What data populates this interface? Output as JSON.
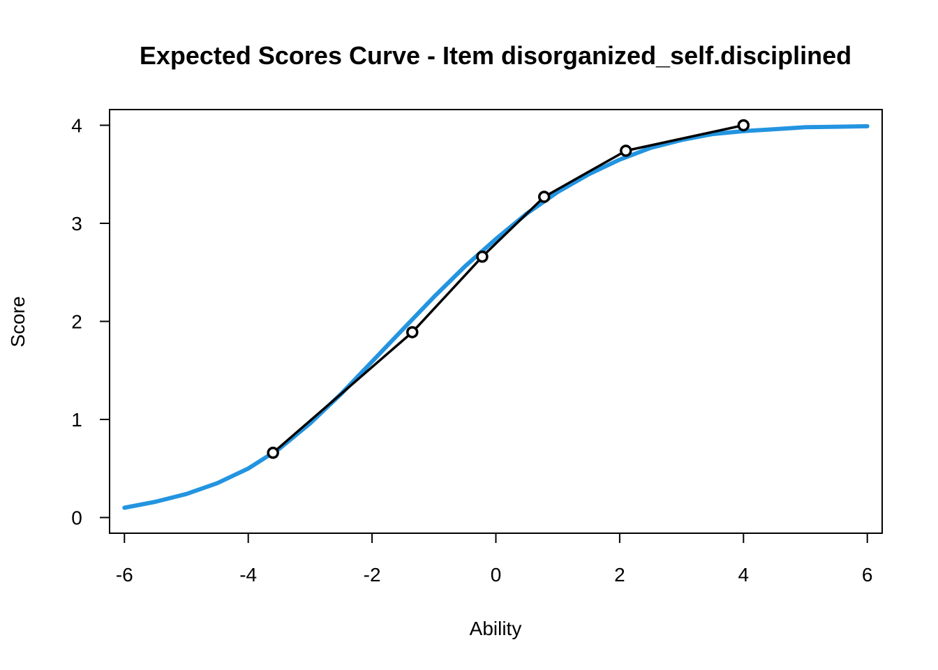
{
  "chart_data": {
    "type": "line",
    "title": "Expected Scores Curve - Item  disorganized_self.disciplined",
    "xlabel": "Ability",
    "ylabel": "Score",
    "xlim": [
      -6.24,
      6.24
    ],
    "ylim": [
      -0.16,
      4.16
    ],
    "x_ticks": [
      -6,
      -4,
      -2,
      0,
      2,
      4,
      6
    ],
    "y_ticks": [
      0,
      1,
      2,
      3,
      4
    ],
    "grid": false,
    "legend": "none",
    "colors": {
      "curve": "#2394e0",
      "observed": "#000000"
    },
    "series": [
      {
        "kind": "expected_curve",
        "x": [
          -6,
          -5.5,
          -5,
          -4.5,
          -4,
          -3.5,
          -3,
          -2.5,
          -2,
          -1.5,
          -1,
          -0.5,
          0,
          0.5,
          1,
          1.5,
          2,
          2.5,
          3,
          3.5,
          4,
          4.5,
          5,
          5.5,
          6
        ],
        "values": [
          0.1,
          0.16,
          0.24,
          0.35,
          0.5,
          0.7,
          0.96,
          1.26,
          1.59,
          1.92,
          2.25,
          2.56,
          2.84,
          3.1,
          3.32,
          3.5,
          3.65,
          3.77,
          3.85,
          3.91,
          3.94,
          3.96,
          3.98,
          3.985,
          3.99
        ]
      },
      {
        "kind": "observed",
        "x": [
          -3.6,
          -1.35,
          -0.22,
          0.78,
          2.1,
          4.0
        ],
        "values": [
          0.66,
          1.89,
          2.66,
          3.27,
          3.74,
          4.0
        ]
      }
    ]
  }
}
